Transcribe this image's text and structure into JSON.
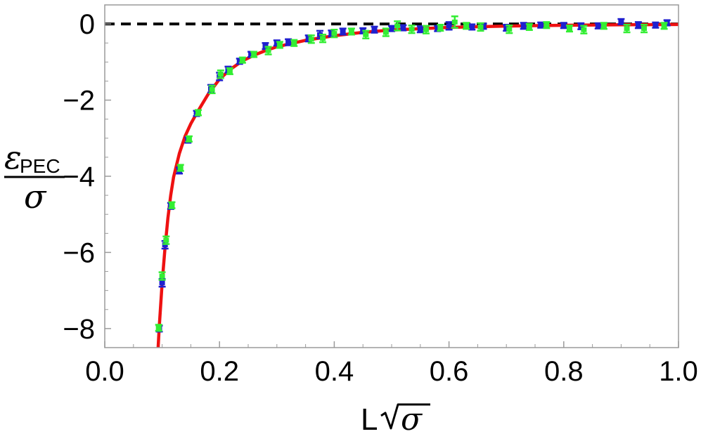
{
  "chart_data": {
    "type": "scatter",
    "xlim": [
      0.0,
      1.0
    ],
    "ylim": [
      -8.5,
      0.5
    ],
    "x_ticks": [
      {
        "value": 0.0,
        "label": "0.0"
      },
      {
        "value": 0.2,
        "label": "0.2"
      },
      {
        "value": 0.4,
        "label": "0.4"
      },
      {
        "value": 0.6,
        "label": "0.6"
      },
      {
        "value": 0.8,
        "label": "0.8"
      },
      {
        "value": 1.0,
        "label": "1.0"
      }
    ],
    "y_ticks": [
      {
        "value": 0,
        "label": "0"
      },
      {
        "value": -2,
        "label": "−2"
      },
      {
        "value": -4,
        "label": "−4"
      },
      {
        "value": -6,
        "label": "−6"
      },
      {
        "value": -8,
        "label": "−8"
      }
    ],
    "xlabel": {
      "main": "L",
      "sub": "σ"
    },
    "ylabel": {
      "numerator": "ε",
      "subscript": "PEC",
      "denominator": "σ"
    },
    "grid": false,
    "reference_line": {
      "y": 0,
      "style": "dashed",
      "color": "#000000"
    },
    "fit_curve": {
      "color": "#ee1111",
      "samples": [
        [
          0.093,
          -8.5
        ],
        [
          0.095,
          -7.95
        ],
        [
          0.1,
          -6.8
        ],
        [
          0.105,
          -5.88
        ],
        [
          0.11,
          -5.1
        ],
        [
          0.115,
          -4.5
        ],
        [
          0.12,
          -4.02
        ],
        [
          0.13,
          -3.4
        ],
        [
          0.14,
          -2.95
        ],
        [
          0.15,
          -2.62
        ],
        [
          0.16,
          -2.35
        ],
        [
          0.18,
          -1.85
        ],
        [
          0.2,
          -1.45
        ],
        [
          0.22,
          -1.18
        ],
        [
          0.24,
          -0.97
        ],
        [
          0.26,
          -0.82
        ],
        [
          0.28,
          -0.7
        ],
        [
          0.3,
          -0.6
        ],
        [
          0.35,
          -0.43
        ],
        [
          0.4,
          -0.31
        ],
        [
          0.45,
          -0.22
        ],
        [
          0.5,
          -0.16
        ],
        [
          0.6,
          -0.09
        ],
        [
          0.7,
          -0.055
        ],
        [
          0.8,
          -0.035
        ],
        [
          0.9,
          -0.022
        ],
        [
          1.0,
          -0.015
        ]
      ]
    },
    "series": [
      {
        "color": "#1f1fcf",
        "points": [
          [
            0.095,
            -8.0,
            0.08
          ],
          [
            0.1,
            -6.8,
            0.1
          ],
          [
            0.105,
            -5.8,
            0.1
          ],
          [
            0.115,
            -4.78,
            0.08
          ],
          [
            0.13,
            -3.85,
            0.08
          ],
          [
            0.145,
            -3.05,
            0.07
          ],
          [
            0.16,
            -2.35,
            0.07
          ],
          [
            0.185,
            -1.7,
            0.1
          ],
          [
            0.2,
            -1.38,
            0.1
          ],
          [
            0.215,
            -1.2,
            0.08
          ],
          [
            0.235,
            -0.98,
            0.07
          ],
          [
            0.255,
            -0.8,
            0.07
          ],
          [
            0.28,
            -0.58,
            0.08
          ],
          [
            0.3,
            -0.5,
            0.07
          ],
          [
            0.32,
            -0.48,
            0.08
          ],
          [
            0.355,
            -0.38,
            0.08
          ],
          [
            0.375,
            -0.28,
            0.1
          ],
          [
            0.395,
            -0.25,
            0.08
          ],
          [
            0.415,
            -0.2,
            0.08
          ],
          [
            0.45,
            -0.18,
            0.07
          ],
          [
            0.47,
            -0.15,
            0.08
          ],
          [
            0.5,
            -0.12,
            0.07
          ],
          [
            0.52,
            -0.1,
            0.07
          ],
          [
            0.55,
            -0.14,
            0.08
          ],
          [
            0.58,
            -0.12,
            0.07
          ],
          [
            0.6,
            -0.05,
            0.1
          ],
          [
            0.64,
            -0.08,
            0.07
          ],
          [
            0.66,
            -0.06,
            0.07
          ],
          [
            0.7,
            -0.1,
            0.08
          ],
          [
            0.73,
            -0.05,
            0.08
          ],
          [
            0.76,
            -0.03,
            0.07
          ],
          [
            0.8,
            -0.04,
            0.07
          ],
          [
            0.83,
            -0.06,
            0.08
          ],
          [
            0.86,
            -0.05,
            0.07
          ],
          [
            0.9,
            0.06,
            0.07
          ],
          [
            0.93,
            -0.03,
            0.08
          ],
          [
            0.96,
            -0.03,
            0.07
          ],
          [
            0.98,
            0.03,
            0.07
          ]
        ]
      },
      {
        "color": "#33ee33",
        "points": [
          [
            0.094,
            -7.98,
            0.08
          ],
          [
            0.1,
            -6.62,
            0.1
          ],
          [
            0.107,
            -5.68,
            0.1
          ],
          [
            0.117,
            -4.76,
            0.08
          ],
          [
            0.132,
            -3.78,
            0.08
          ],
          [
            0.147,
            -3.02,
            0.07
          ],
          [
            0.163,
            -2.33,
            0.07
          ],
          [
            0.187,
            -1.72,
            0.1
          ],
          [
            0.202,
            -1.32,
            0.1
          ],
          [
            0.218,
            -1.24,
            0.08
          ],
          [
            0.24,
            -0.95,
            0.07
          ],
          [
            0.26,
            -0.8,
            0.07
          ],
          [
            0.285,
            -0.7,
            0.1
          ],
          [
            0.305,
            -0.55,
            0.08
          ],
          [
            0.33,
            -0.5,
            0.08
          ],
          [
            0.36,
            -0.4,
            0.1
          ],
          [
            0.38,
            -0.38,
            0.1
          ],
          [
            0.4,
            -0.25,
            0.1
          ],
          [
            0.43,
            -0.2,
            0.08
          ],
          [
            0.455,
            -0.28,
            0.1
          ],
          [
            0.49,
            -0.22,
            0.1
          ],
          [
            0.51,
            -0.05,
            0.12
          ],
          [
            0.535,
            -0.14,
            0.1
          ],
          [
            0.56,
            -0.15,
            0.1
          ],
          [
            0.585,
            -0.1,
            0.08
          ],
          [
            0.61,
            0.05,
            0.15
          ],
          [
            0.63,
            -0.05,
            0.08
          ],
          [
            0.655,
            -0.08,
            0.1
          ],
          [
            0.705,
            -0.14,
            0.1
          ],
          [
            0.74,
            -0.08,
            0.08
          ],
          [
            0.77,
            -0.03,
            0.08
          ],
          [
            0.81,
            -0.12,
            0.08
          ],
          [
            0.835,
            -0.15,
            0.1
          ],
          [
            0.87,
            -0.05,
            0.08
          ],
          [
            0.91,
            -0.12,
            0.1
          ],
          [
            0.94,
            -0.12,
            0.1
          ],
          [
            0.975,
            -0.05,
            0.08
          ]
        ]
      }
    ]
  }
}
